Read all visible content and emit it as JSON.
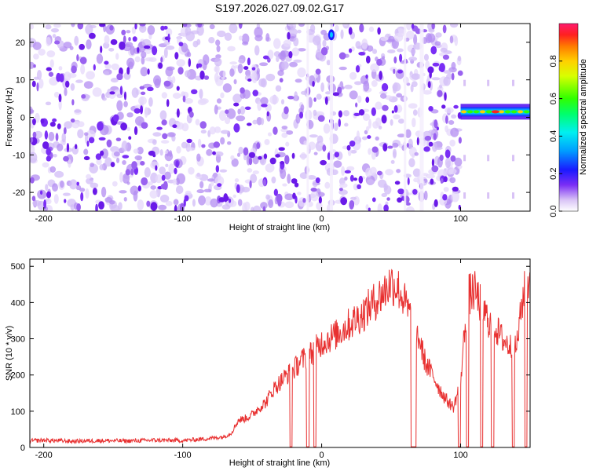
{
  "title": "S197.2026.027.09.02.G17",
  "chart_data": [
    {
      "type": "heatmap",
      "xlabel": "Height of straight line (km)",
      "ylabel": "Frequency (Hz)",
      "xlim": [
        -210,
        150
      ],
      "ylim": [
        -25,
        25
      ],
      "xticks": [
        -200,
        -100,
        0,
        100
      ],
      "yticks": [
        -20,
        -10,
        0,
        10,
        20
      ],
      "colorbar": {
        "label": "Normalized spectral amplitude",
        "range": [
          0,
          1
        ],
        "ticks": [
          "0.0",
          "0.2",
          "0.4",
          "0.6",
          "0.8"
        ]
      },
      "features": {
        "noise_band_x_range": [
          -210,
          100
        ],
        "signal_line_x_range": [
          100,
          150
        ],
        "signal_line_frequency_hz": 1.5,
        "signal_line_peak_amplitude": 0.9,
        "bright_spot": {
          "x": 7,
          "y": 22
        }
      }
    },
    {
      "type": "line",
      "xlabel": "Height of straight line (km)",
      "ylabel": "SNR (10 * v/v)",
      "xlim": [
        -210,
        150
      ],
      "ylim": [
        0,
        520
      ],
      "xticks": [
        -200,
        -100,
        0,
        100
      ],
      "yticks": [
        0,
        100,
        200,
        300,
        400,
        500
      ],
      "series": [
        {
          "name": "SNR",
          "color": "#e83030",
          "x": [
            -210,
            -200,
            -180,
            -160,
            -140,
            -120,
            -100,
            -90,
            -80,
            -70,
            -65,
            -60,
            -55,
            -50,
            -45,
            -40,
            -35,
            -30,
            -25,
            -20,
            -15,
            -10,
            -5,
            0,
            5,
            10,
            15,
            20,
            25,
            30,
            35,
            40,
            45,
            50,
            55,
            60,
            65,
            70,
            75,
            80,
            85,
            90,
            95,
            100,
            105,
            110,
            115,
            120,
            125,
            130,
            135,
            140,
            145,
            150
          ],
          "values": [
            18,
            20,
            17,
            19,
            18,
            20,
            19,
            22,
            25,
            30,
            40,
            75,
            80,
            90,
            110,
            125,
            160,
            180,
            200,
            215,
            240,
            250,
            270,
            290,
            300,
            310,
            325,
            340,
            355,
            370,
            390,
            410,
            430,
            455,
            440,
            400,
            350,
            300,
            230,
            200,
            160,
            130,
            110,
            185,
            420,
            430,
            390,
            350,
            330,
            300,
            280,
            270,
            420,
            470
          ]
        }
      ],
      "dropouts_x": [
        -22,
        -10,
        -5,
        65,
        67,
        99,
        105,
        115,
        123,
        138,
        147
      ]
    }
  ],
  "colors": {
    "noise": "#7a2ef5",
    "line": "#e83030",
    "background": "#ffffff"
  }
}
